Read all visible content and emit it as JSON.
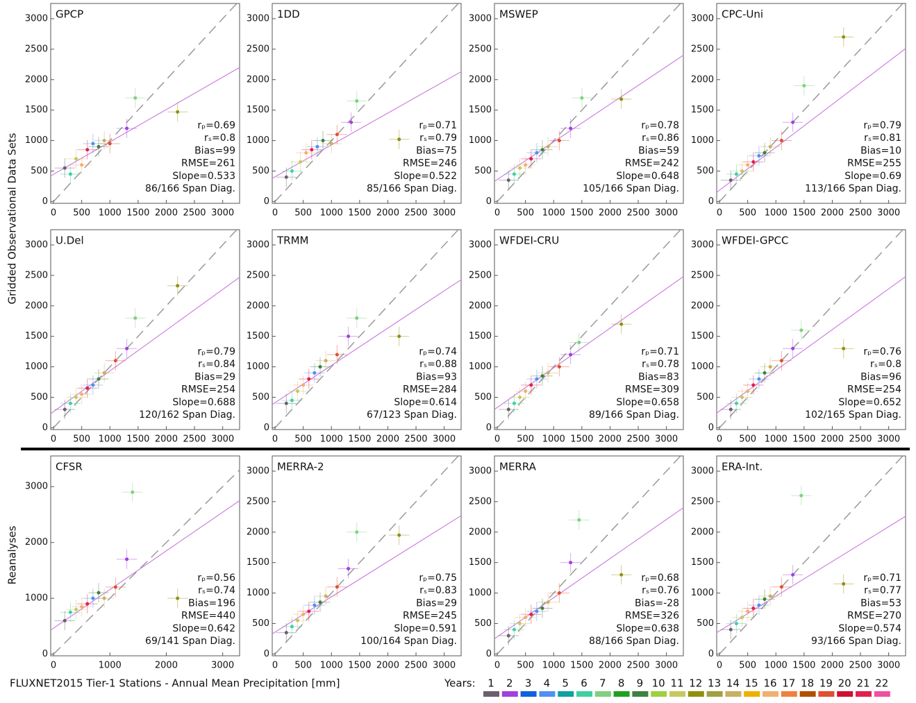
{
  "figure": {
    "ylabel_obs": "Gridded Observational Data Sets",
    "ylabel_rea": "Reanalyses",
    "xlabel": "FLUXNET2015 Tier-1 Stations - Annual Mean Precipitation [mm]",
    "legend": {
      "title": "Years:",
      "items": [
        "1",
        "2",
        "3",
        "4",
        "5",
        "6",
        "7",
        "8",
        "9",
        "10",
        "11",
        "12",
        "13",
        "14",
        "15",
        "16",
        "17",
        "18",
        "19",
        "20",
        "21",
        "22"
      ],
      "colors": [
        "#6b5f6f",
        "#a040e0",
        "#1060e0",
        "#5090f0",
        "#10a0a0",
        "#40d0a0",
        "#80d080",
        "#20a020",
        "#408040",
        "#a0d040",
        "#c8c860",
        "#909010",
        "#a0a040",
        "#c8b060",
        "#f0b000",
        "#f0b070",
        "#f08040",
        "#b05000",
        "#e05030",
        "#d01030",
        "#e02050",
        "#f050a0"
      ]
    }
  },
  "chart_data": [
    {
      "type": "scatter",
      "title": "GPCP",
      "xlim": [
        -50,
        3300
      ],
      "ylim": [
        -30,
        3250
      ],
      "xticks": [
        0,
        500,
        1000,
        1500,
        2000,
        2500,
        3000
      ],
      "yticks": [
        0,
        500,
        1000,
        1500,
        2000,
        2500,
        3000
      ],
      "x": [
        200,
        300,
        400,
        500,
        600,
        700,
        800,
        900,
        1000,
        1300,
        1450,
        2200
      ],
      "y": [
        550,
        450,
        700,
        600,
        850,
        950,
        900,
        1000,
        950,
        1200,
        1700,
        1470
      ],
      "fit_y": [
        420,
        2200
      ],
      "stats": [
        "rₚ=0.69",
        "rₛ=0.8",
        "Bias=99",
        "RMSE=261",
        "Slope=0.533",
        "86/166 Span Diag."
      ]
    },
    {
      "type": "scatter",
      "title": "1DD",
      "xlim": [
        -50,
        3300
      ],
      "ylim": [
        -30,
        3250
      ],
      "xticks": [
        0,
        500,
        1000,
        1500,
        2000,
        2500,
        3000
      ],
      "yticks": [
        0,
        500,
        1000,
        1500,
        2000,
        2500,
        3000
      ],
      "x": [
        200,
        300,
        450,
        550,
        650,
        750,
        850,
        1000,
        1100,
        1350,
        1450,
        2200
      ],
      "y": [
        400,
        500,
        650,
        800,
        850,
        900,
        1000,
        950,
        1100,
        1300,
        1650,
        1020
      ],
      "fit_y": [
        380,
        2130
      ],
      "stats": [
        "rₚ=0.71",
        "rₛ=0.79",
        "Bias=75",
        "RMSE=246",
        "Slope=0.522",
        "85/166 Span Diag."
      ]
    },
    {
      "type": "scatter",
      "title": "MSWEP",
      "xlim": [
        -50,
        3300
      ],
      "ylim": [
        -30,
        3250
      ],
      "xticks": [
        0,
        500,
        1000,
        1500,
        2000,
        2500,
        3000
      ],
      "yticks": [
        0,
        500,
        1000,
        1500,
        2000,
        2500,
        3000
      ],
      "x": [
        200,
        300,
        400,
        500,
        600,
        700,
        800,
        900,
        1100,
        1300,
        1500,
        2200
      ],
      "y": [
        350,
        450,
        550,
        600,
        700,
        800,
        850,
        900,
        1000,
        1200,
        1700,
        1680
      ],
      "fit_y": [
        330,
        2400
      ],
      "stats": [
        "rₚ=0.78",
        "rₛ=0.86",
        "Bias=59",
        "RMSE=242",
        "Slope=0.648",
        "105/166 Span Diag."
      ]
    },
    {
      "type": "scatter",
      "title": "CPC-Uni",
      "xlim": [
        -50,
        3300
      ],
      "ylim": [
        -30,
        3250
      ],
      "xticks": [
        0,
        500,
        1000,
        1500,
        2000,
        2500,
        3000
      ],
      "yticks": [
        0,
        500,
        1000,
        1500,
        2000,
        2500,
        3000
      ],
      "x": [
        200,
        300,
        400,
        500,
        600,
        700,
        800,
        900,
        1100,
        1300,
        1500,
        2200
      ],
      "y": [
        350,
        450,
        500,
        600,
        650,
        750,
        800,
        900,
        1000,
        1300,
        1900,
        2700
      ],
      "fit_y": [
        150,
        2510
      ],
      "stats": [
        "rₚ=0.79",
        "rₛ=0.81",
        "Bias=10",
        "RMSE=255",
        "Slope=0.69",
        "113/166 Span Diag."
      ]
    },
    {
      "type": "scatter",
      "title": "U.Del",
      "xlim": [
        -50,
        3300
      ],
      "ylim": [
        -30,
        3250
      ],
      "xticks": [
        0,
        500,
        1000,
        1500,
        2000,
        2500,
        3000
      ],
      "yticks": [
        0,
        500,
        1000,
        1500,
        2000,
        2500,
        3000
      ],
      "x": [
        200,
        300,
        400,
        500,
        600,
        700,
        800,
        900,
        1100,
        1300,
        1450,
        2200
      ],
      "y": [
        300,
        400,
        500,
        550,
        650,
        700,
        800,
        900,
        1100,
        1300,
        1800,
        2330
      ],
      "fit_y": [
        230,
        2470
      ],
      "stats": [
        "rₚ=0.79",
        "rₛ=0.84",
        "Bias=29",
        "RMSE=254",
        "Slope=0.688",
        "120/162 Span Diag."
      ]
    },
    {
      "type": "scatter",
      "title": "TRMM",
      "xlim": [
        -50,
        3300
      ],
      "ylim": [
        -30,
        3250
      ],
      "xticks": [
        0,
        500,
        1000,
        1500,
        2000,
        2500,
        3000
      ],
      "yticks": [
        0,
        500,
        1000,
        1500,
        2000,
        2500,
        3000
      ],
      "x": [
        200,
        300,
        400,
        500,
        600,
        700,
        800,
        900,
        1100,
        1300,
        1450,
        2200
      ],
      "y": [
        400,
        450,
        600,
        700,
        800,
        900,
        1000,
        1100,
        1200,
        1500,
        1800,
        1500
      ],
      "fit_y": [
        380,
        2430
      ],
      "stats": [
        "rₚ=0.74",
        "rₛ=0.88",
        "Bias=93",
        "RMSE=284",
        "Slope=0.614",
        "67/123 Span Diag."
      ]
    },
    {
      "type": "scatter",
      "title": "WFDEI-CRU",
      "xlim": [
        -50,
        3300
      ],
      "ylim": [
        -30,
        3250
      ],
      "xticks": [
        0,
        500,
        1000,
        1500,
        2000,
        2500,
        3000
      ],
      "yticks": [
        0,
        500,
        1000,
        1500,
        2000,
        2500,
        3000
      ],
      "x": [
        200,
        300,
        400,
        500,
        600,
        700,
        800,
        900,
        1100,
        1300,
        1450,
        2200
      ],
      "y": [
        300,
        400,
        500,
        600,
        700,
        800,
        850,
        900,
        1000,
        1200,
        1400,
        1700
      ],
      "fit_y": [
        300,
        2480
      ],
      "stats": [
        "rₚ=0.71",
        "rₛ=0.78",
        "Bias=83",
        "RMSE=309",
        "Slope=0.658",
        "89/166 Span Diag."
      ]
    },
    {
      "type": "scatter",
      "title": "WFDEI-GPCC",
      "xlim": [
        -50,
        3300
      ],
      "ylim": [
        -30,
        3250
      ],
      "xticks": [
        0,
        500,
        1000,
        1500,
        2000,
        2500,
        3000
      ],
      "yticks": [
        0,
        500,
        1000,
        1500,
        2000,
        2500,
        3000
      ],
      "x": [
        200,
        300,
        400,
        500,
        600,
        700,
        800,
        900,
        1100,
        1300,
        1450,
        2200
      ],
      "y": [
        300,
        400,
        500,
        600,
        700,
        800,
        900,
        1000,
        1100,
        1300,
        1600,
        1300
      ],
      "fit_y": [
        240,
        2480
      ],
      "stats": [
        "rₚ=0.76",
        "rₛ=0.8",
        "Bias=96",
        "RMSE=254",
        "Slope=0.652",
        "102/165 Span Diag."
      ]
    },
    {
      "type": "scatter",
      "title": "CFSR",
      "xlim": [
        -50,
        3300
      ],
      "ylim": [
        -30,
        3550
      ],
      "xticks": [
        0,
        1000,
        2000,
        3000
      ],
      "yticks": [
        0,
        1000,
        2000,
        3000
      ],
      "x": [
        200,
        300,
        400,
        500,
        600,
        700,
        800,
        900,
        1100,
        1300,
        1400,
        2200
      ],
      "y": [
        600,
        750,
        800,
        850,
        900,
        1000,
        1100,
        1000,
        1200,
        1700,
        2900,
        1000
      ],
      "fit_y": [
        430,
        2750
      ],
      "stats": [
        "rₚ=0.56",
        "rₛ=0.74",
        "Bias=196",
        "RMSE=440",
        "Slope=0.642",
        "69/141 Span Diag."
      ]
    },
    {
      "type": "scatter",
      "title": "MERRA-2",
      "xlim": [
        -50,
        3300
      ],
      "ylim": [
        -30,
        3250
      ],
      "xticks": [
        0,
        500,
        1000,
        1500,
        2000,
        2500,
        3000
      ],
      "yticks": [
        0,
        500,
        1000,
        1500,
        2000,
        2500,
        3000
      ],
      "x": [
        200,
        300,
        400,
        500,
        600,
        700,
        800,
        900,
        1100,
        1300,
        1450,
        2200
      ],
      "y": [
        350,
        450,
        550,
        650,
        700,
        800,
        850,
        950,
        1100,
        1400,
        2000,
        1950
      ],
      "fit_y": [
        330,
        2270
      ],
      "stats": [
        "rₚ=0.75",
        "rₛ=0.83",
        "Bias=29",
        "RMSE=245",
        "Slope=0.591",
        "100/164 Span Diag."
      ]
    },
    {
      "type": "scatter",
      "title": "MERRA",
      "xlim": [
        -50,
        3300
      ],
      "ylim": [
        -30,
        3250
      ],
      "xticks": [
        0,
        500,
        1000,
        1500,
        2000,
        2500,
        3000
      ],
      "yticks": [
        0,
        500,
        1000,
        1500,
        2000,
        2500,
        3000
      ],
      "x": [
        200,
        300,
        400,
        500,
        600,
        700,
        800,
        900,
        1100,
        1300,
        1450,
        2200
      ],
      "y": [
        300,
        400,
        500,
        600,
        650,
        700,
        750,
        850,
        1000,
        1500,
        2200,
        1300
      ],
      "fit_y": [
        250,
        2400
      ],
      "stats": [
        "rₚ=0.68",
        "rₛ=0.76",
        "Bias=-28",
        "RMSE=326",
        "Slope=0.638",
        "88/166 Span Diag."
      ]
    },
    {
      "type": "scatter",
      "title": "ERA-Int.",
      "xlim": [
        -50,
        3300
      ],
      "ylim": [
        -30,
        3250
      ],
      "xticks": [
        0,
        500,
        1000,
        1500,
        2000,
        2500,
        3000
      ],
      "yticks": [
        0,
        500,
        1000,
        1500,
        2000,
        2500,
        3000
      ],
      "x": [
        200,
        300,
        400,
        500,
        600,
        700,
        800,
        900,
        1100,
        1300,
        1450,
        2200
      ],
      "y": [
        400,
        500,
        600,
        700,
        750,
        800,
        900,
        950,
        1100,
        1300,
        2600,
        1150
      ],
      "fit_y": [
        350,
        2260
      ],
      "stats": [
        "rₚ=0.71",
        "rₛ=0.77",
        "Bias=53",
        "RMSE=270",
        "Slope=0.574",
        "93/166 Span Diag."
      ]
    }
  ]
}
